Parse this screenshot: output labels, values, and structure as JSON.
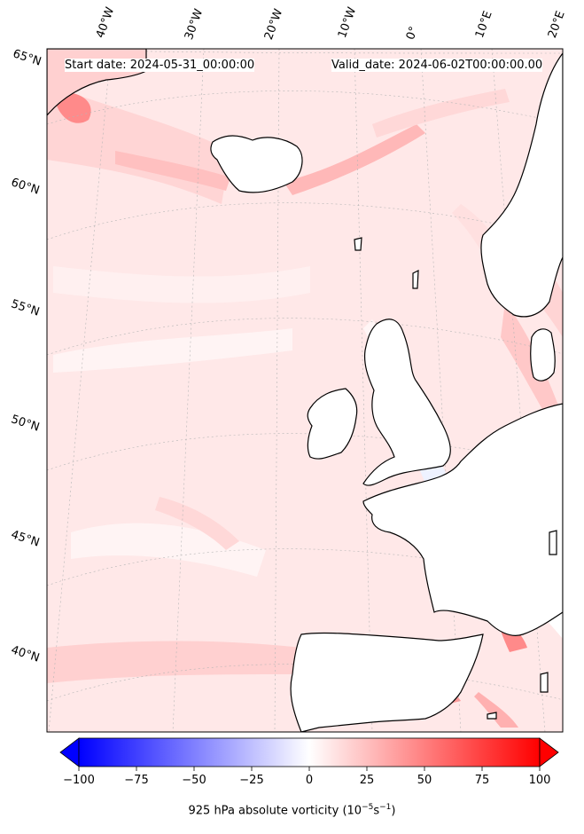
{
  "map": {
    "start_date": "Start date: 2024-05-31_00:00:00",
    "valid_date": "Valid_date: 2024-06-02T00:00:00.00",
    "lon_labels": [
      "40°W",
      "30°W",
      "20°W",
      "10°W",
      "0°",
      "10°E",
      "20°E"
    ],
    "lat_labels": [
      "65°N",
      "60°N",
      "55°N",
      "50°N",
      "45°N",
      "40°N"
    ],
    "field": "925 hPa absolute vorticity"
  },
  "colorbar": {
    "label": "925 hPa absolute vorticity (10",
    "label_exp1": "−5",
    "label_mid": "s",
    "label_exp2": "−1",
    "label_end": ")",
    "ticks": [
      "−100",
      "−75",
      "−50",
      "−25",
      "0",
      "25",
      "50",
      "75",
      "100"
    ],
    "min": -100,
    "max": 100,
    "neg_color": "#0000ff",
    "pos_color": "#ff0000",
    "mid_color": "#ffffff",
    "extend": "both"
  },
  "colors": {
    "background_fill": "#ffe6e6",
    "coastline": "#000000",
    "gridline": "#b0b0b0"
  }
}
